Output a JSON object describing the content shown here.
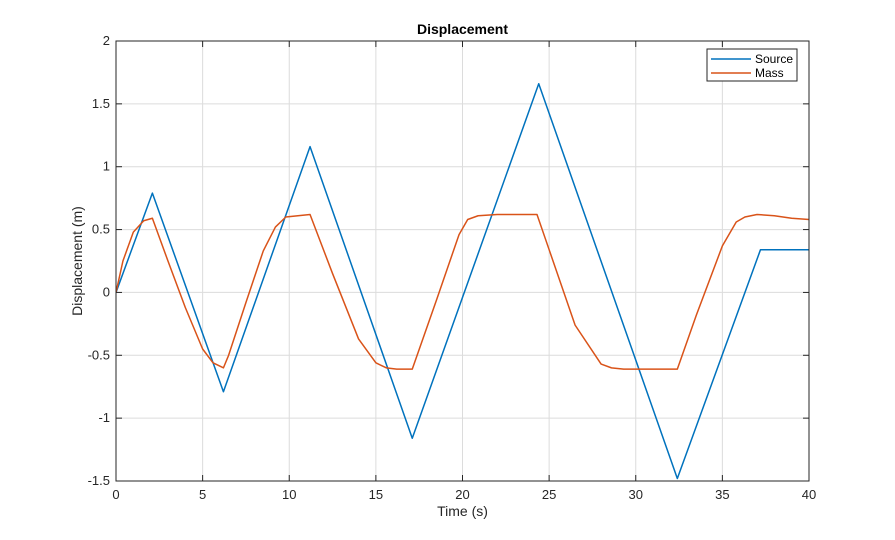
{
  "chart_data": {
    "type": "line",
    "title": "Displacement",
    "xlabel": "Time (s)",
    "ylabel": "Displacement (m)",
    "xlim": [
      0,
      40
    ],
    "ylim": [
      -1.5,
      2
    ],
    "xticks": [
      0,
      5,
      10,
      15,
      20,
      25,
      30,
      35,
      40
    ],
    "xtick_labels": [
      "0",
      "5",
      "10",
      "15",
      "20",
      "25",
      "30",
      "35",
      "40"
    ],
    "yticks": [
      -1.5,
      -1,
      -0.5,
      0,
      0.5,
      1,
      1.5,
      2
    ],
    "ytick_labels": [
      "-1.5",
      "-1",
      "-0.5",
      "0",
      "0.5",
      "1",
      "1.5",
      "2"
    ],
    "grid": true,
    "legend_position": "top-right",
    "series": [
      {
        "name": "Source",
        "color": "#0072BD",
        "x": [
          0,
          2.1,
          6.2,
          11.2,
          17.1,
          24.4,
          32.4,
          37.2,
          40
        ],
        "y": [
          0,
          0.79,
          -0.79,
          1.16,
          -1.16,
          1.66,
          -1.48,
          0.34,
          0.34
        ]
      },
      {
        "name": "Mass",
        "color": "#D95319",
        "x": [
          0,
          0.4,
          1.0,
          1.6,
          2.1,
          3.0,
          4.0,
          5.0,
          5.6,
          6.2,
          6.5,
          7.5,
          8.5,
          9.2,
          9.8,
          10.5,
          11.2,
          12.5,
          14.0,
          15.0,
          15.6,
          16.2,
          17.0,
          17.1,
          18.5,
          19.8,
          20.3,
          20.9,
          22.0,
          24.3,
          25.0,
          26.5,
          28.0,
          28.6,
          29.3,
          31.0,
          32.4,
          33.5,
          35.0,
          35.8,
          36.3,
          37.0,
          38.0,
          39.0,
          40.0
        ],
        "y": [
          0,
          0.25,
          0.48,
          0.57,
          0.59,
          0.25,
          -0.12,
          -0.45,
          -0.56,
          -0.6,
          -0.5,
          -0.08,
          0.33,
          0.52,
          0.6,
          0.61,
          0.62,
          0.15,
          -0.37,
          -0.56,
          -0.6,
          -0.61,
          -0.61,
          -0.61,
          -0.06,
          0.46,
          0.58,
          0.61,
          0.62,
          0.62,
          0.34,
          -0.26,
          -0.57,
          -0.6,
          -0.61,
          -0.61,
          -0.61,
          -0.18,
          0.37,
          0.56,
          0.6,
          0.62,
          0.61,
          0.59,
          0.58
        ]
      }
    ]
  }
}
